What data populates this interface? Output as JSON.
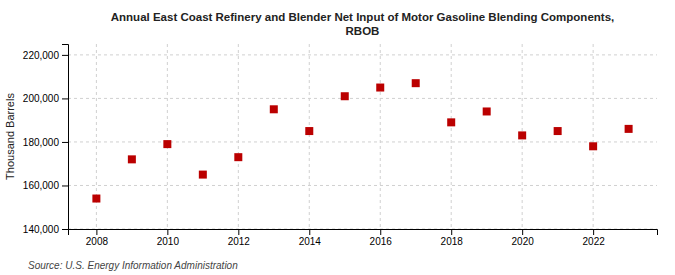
{
  "chart_data": {
    "type": "scatter",
    "title": "Annual East Coast Refinery and Blender Net Input of Motor Gasoline Blending Components,\nRBOB",
    "y_label": "Thousand Barrels",
    "source": "Source: U.S. Energy Information Administration",
    "x": [
      2008,
      2009,
      2010,
      2011,
      2012,
      2013,
      2014,
      2015,
      2016,
      2017,
      2018,
      2019,
      2020,
      2021,
      2022,
      2023
    ],
    "values": [
      154000,
      172000,
      179000,
      165000,
      173000,
      195000,
      185000,
      201000,
      205000,
      207000,
      189000,
      194000,
      183000,
      185000,
      178000,
      186000
    ],
    "color": "#bb0000",
    "marker": "square",
    "xlim": [
      2007.2,
      2023.8
    ],
    "xticks": [
      2008,
      2010,
      2012,
      2014,
      2016,
      2018,
      2020,
      2022
    ],
    "ylim": [
      140000,
      225000
    ],
    "yticks": [
      {
        "value": 140000,
        "label": "140,000"
      },
      {
        "value": 160000,
        "label": "160,000"
      },
      {
        "value": 180000,
        "label": "180,000"
      },
      {
        "value": 200000,
        "label": "200,000"
      },
      {
        "value": 220000,
        "label": "220,000"
      }
    ],
    "grid": true
  }
}
